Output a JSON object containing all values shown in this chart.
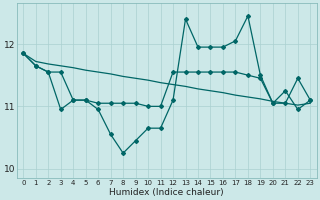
{
  "xlabel": "Humidex (Indice chaleur)",
  "bg_color": "#cce8e8",
  "line_color": "#006666",
  "grid_color": "#aad0d0",
  "xlim": [
    -0.5,
    23.5
  ],
  "ylim": [
    9.85,
    12.65
  ],
  "yticks": [
    10,
    11,
    12
  ],
  "xtick_labels": [
    "0",
    "1",
    "2",
    "3",
    "4",
    "5",
    "6",
    "7",
    "8",
    "9",
    "10",
    "11",
    "12",
    "13",
    "14",
    "15",
    "16",
    "17",
    "18",
    "19",
    "20",
    "21",
    "22",
    "23"
  ],
  "line_flat": [
    11.85,
    11.72,
    11.68,
    11.65,
    11.62,
    11.58,
    11.55,
    11.52,
    11.48,
    11.45,
    11.42,
    11.38,
    11.35,
    11.32,
    11.28,
    11.25,
    11.22,
    11.18,
    11.15,
    11.12,
    11.08,
    11.05,
    11.02,
    11.05
  ],
  "line_mid": [
    11.85,
    11.65,
    11.55,
    11.55,
    11.1,
    11.1,
    11.05,
    11.05,
    11.05,
    11.05,
    11.0,
    11.0,
    11.55,
    11.55,
    11.55,
    11.55,
    11.55,
    11.55,
    11.5,
    11.45,
    11.05,
    11.05,
    11.45,
    11.1
  ],
  "line_volatile": [
    11.85,
    11.65,
    11.55,
    10.95,
    11.1,
    11.1,
    10.95,
    10.55,
    10.25,
    10.45,
    10.65,
    10.65,
    11.1,
    12.4,
    11.95,
    11.95,
    11.95,
    12.05,
    12.45,
    11.5,
    11.05,
    11.25,
    10.95,
    11.1
  ]
}
